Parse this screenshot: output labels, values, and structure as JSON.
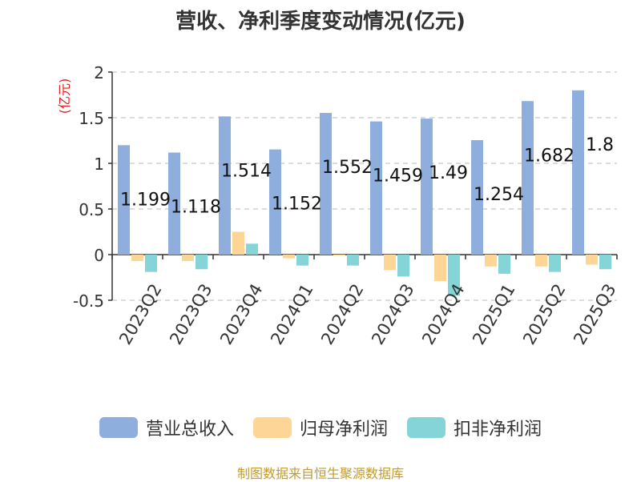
{
  "chart_data": {
    "type": "bar",
    "title": "营收、净利季度变动情况(亿元)",
    "ylabel": "(亿元)",
    "xlabel": "",
    "ylim": [
      -0.5,
      2
    ],
    "yticks": [
      "-0.5",
      "0",
      "0.5",
      "1",
      "1.5",
      "2"
    ],
    "ytick_values": [
      -0.5,
      0,
      0.5,
      1,
      1.5,
      2
    ],
    "grid": true,
    "legend_position": "bottom",
    "categories": [
      "2023Q2",
      "2023Q3",
      "2023Q4",
      "2024Q1",
      "2024Q2",
      "2024Q3",
      "2024Q4",
      "2025Q1",
      "2025Q2",
      "2025Q3"
    ],
    "series": [
      {
        "name": "营业总收入",
        "color": "#8eaede",
        "values": [
          1.199,
          1.118,
          1.514,
          1.152,
          1.552,
          1.459,
          1.49,
          1.254,
          1.682,
          1.8
        ],
        "labels": [
          "1.199",
          "1.118",
          "1.514",
          "1.152",
          "1.552",
          "1.459",
          "1.49",
          "1.254",
          "1.682",
          "1.8"
        ]
      },
      {
        "name": "归母净利润",
        "color": "#fdd596",
        "values": [
          -0.07,
          -0.07,
          0.25,
          -0.04,
          -0.01,
          -0.17,
          -0.29,
          -0.13,
          -0.13,
          -0.11
        ]
      },
      {
        "name": "扣非净利润",
        "color": "#85d5d8",
        "values": [
          -0.19,
          -0.16,
          0.12,
          -0.12,
          -0.12,
          -0.24,
          -0.45,
          -0.21,
          -0.19,
          -0.16
        ]
      }
    ],
    "source": "制图数据来自恒生聚源数据库"
  }
}
